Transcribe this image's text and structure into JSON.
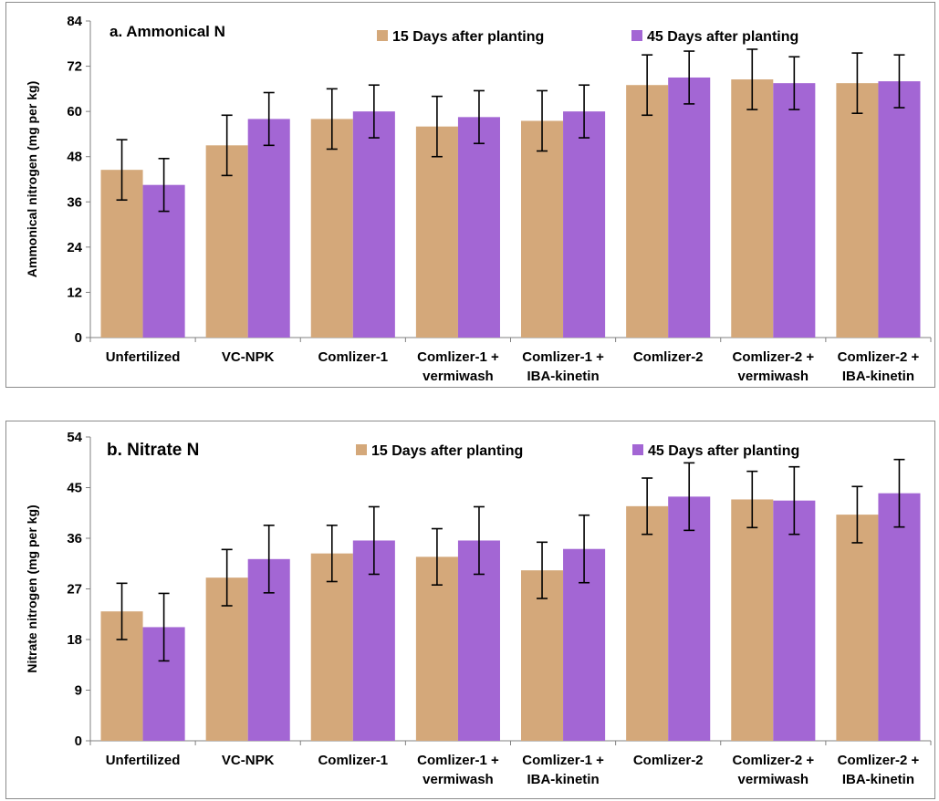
{
  "chart_data": [
    {
      "type": "bar",
      "title": "a. Ammonical N",
      "ylabel": "Ammonical nitrogen (mg per kg)",
      "ylim": [
        0,
        84
      ],
      "yticks": [
        "0",
        "12",
        "24",
        "36",
        "48",
        "60",
        "72",
        "84"
      ],
      "grid": false,
      "legend_position": "top",
      "categories": [
        [
          "Unfertilized"
        ],
        [
          "VC-NPK"
        ],
        [
          "Comlizer-1"
        ],
        [
          "Comlizer-1 +",
          "vermiwash"
        ],
        [
          "Comlizer-1 +",
          "IBA-kinetin"
        ],
        [
          "Comlizer-2"
        ],
        [
          "Comlizer-2 +",
          "vermiwash"
        ],
        [
          "Comlizer-2 +",
          "IBA-kinetin"
        ]
      ],
      "series": [
        {
          "name": "15 Days after planting",
          "color": "#d4a87a",
          "values": [
            44.5,
            51,
            58,
            56,
            57.5,
            67,
            68.5,
            67.5
          ],
          "errors": [
            8,
            8,
            8,
            8,
            8,
            8,
            8,
            8
          ]
        },
        {
          "name": "45 Days after planting",
          "color": "#a366d4",
          "values": [
            40.5,
            58,
            60,
            58.5,
            60,
            69,
            67.5,
            68
          ],
          "errors": [
            7,
            7,
            7,
            7,
            7,
            7,
            7,
            7
          ]
        }
      ]
    },
    {
      "type": "bar",
      "title": "b. Nitrate N",
      "ylabel": "Nitrate nitrogen (mg per kg)",
      "ylim": [
        0,
        54
      ],
      "yticks": [
        "0",
        "9",
        "18",
        "27",
        "36",
        "45",
        "54"
      ],
      "grid": false,
      "legend_position": "top",
      "categories": [
        [
          "Unfertilized"
        ],
        [
          "VC-NPK"
        ],
        [
          "Comlizer-1"
        ],
        [
          "Comlizer-1 +",
          "vermiwash"
        ],
        [
          "Comlizer-1 +",
          "IBA-kinetin"
        ],
        [
          "Comlizer-2"
        ],
        [
          "Comlizer-2 +",
          "vermiwash"
        ],
        [
          "Comlizer-2 +",
          "IBA-kinetin"
        ]
      ],
      "series": [
        {
          "name": "15 Days after planting",
          "color": "#d4a87a",
          "values": [
            23,
            29,
            33.3,
            32.7,
            30.3,
            41.7,
            42.9,
            40.2
          ],
          "errors": [
            5,
            5,
            5,
            5,
            5,
            5,
            5,
            5
          ]
        },
        {
          "name": "45 Days after planting",
          "color": "#a366d4",
          "values": [
            20.2,
            32.3,
            35.6,
            35.6,
            34.1,
            43.4,
            42.7,
            44
          ],
          "errors": [
            6,
            6,
            6,
            6,
            6,
            6,
            6,
            6
          ]
        }
      ]
    }
  ]
}
